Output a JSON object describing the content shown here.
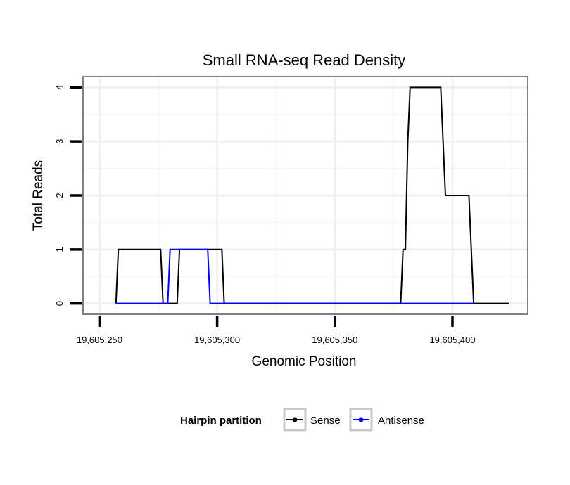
{
  "chart_data": {
    "type": "line",
    "title": "Small RNA-seq Read Density",
    "xlabel": "Genomic Position",
    "ylabel": "Total Reads",
    "xlim": [
      19605243,
      19605432
    ],
    "ylim": [
      -0.2,
      4.2
    ],
    "x_ticks": [
      19605250,
      19605300,
      19605350,
      19605400
    ],
    "x_tick_labels": [
      "19,605,250",
      "19,605,300",
      "19,605,350",
      "19,605,400"
    ],
    "y_ticks": [
      0,
      1,
      2,
      3,
      4
    ],
    "y_tick_labels": [
      "0",
      "1",
      "2",
      "3",
      "4"
    ],
    "grid": true,
    "legend": {
      "title": "Hairpin partition",
      "placement": "bottom",
      "entries": [
        "Sense",
        "Antisense"
      ]
    },
    "series": [
      {
        "name": "Sense",
        "color": "#000000",
        "points": [
          [
            19605257,
            0
          ],
          [
            19605258,
            1
          ],
          [
            19605276,
            1
          ],
          [
            19605277,
            0
          ],
          [
            19605283,
            0
          ],
          [
            19605284,
            1
          ],
          [
            19605302,
            1
          ],
          [
            19605303,
            0
          ],
          [
            19605378,
            0
          ],
          [
            19605379,
            1
          ],
          [
            19605380,
            1
          ],
          [
            19605381,
            3
          ],
          [
            19605382,
            4
          ],
          [
            19605395,
            4
          ],
          [
            19605397,
            2
          ],
          [
            19605407,
            2
          ],
          [
            19605409,
            0
          ],
          [
            19605424,
            0
          ]
        ]
      },
      {
        "name": "Antisense",
        "color": "#0000ff",
        "points": [
          [
            19605257,
            0
          ],
          [
            19605279,
            0
          ],
          [
            19605280,
            1
          ],
          [
            19605296,
            1
          ],
          [
            19605297,
            0
          ],
          [
            19605409,
            0
          ]
        ]
      }
    ]
  }
}
